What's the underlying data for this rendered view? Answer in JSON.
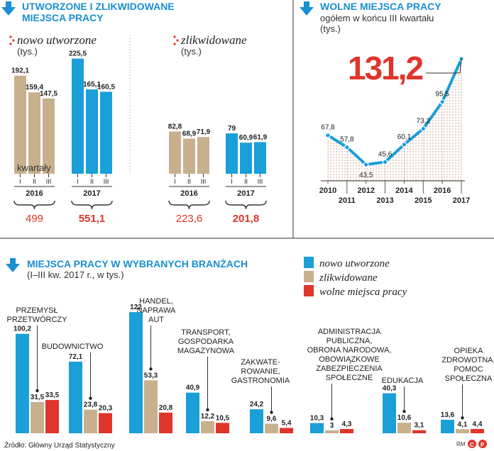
{
  "colors": {
    "blue": "#1a9fd8",
    "tan": "#c8b08c",
    "red": "#e0352b",
    "header": "#1a8fd2",
    "area_dots": "#d9a89a"
  },
  "panel1": {
    "title_line1": "UTWORZONE I ZLIKWIDOWANE",
    "title_line2": "MIEJSCA PRACY",
    "icon": "arrow-down-icon",
    "left": {
      "label": "nowo utworzone",
      "unit": "(tys.)",
      "quarters_label": "kwartały",
      "quarters": [
        "I",
        "II",
        "III"
      ],
      "groups": [
        {
          "year": "2016",
          "values": [
            192.1,
            159.4,
            147.5
          ],
          "labels": [
            "192,1",
            "159,4",
            "147,5"
          ],
          "total": "499",
          "color": "tan"
        },
        {
          "year": "2017",
          "values": [
            225.5,
            165.1,
            160.5
          ],
          "labels": [
            "225,5",
            "165,1",
            "160,5"
          ],
          "total": "551,1",
          "color": "blue"
        }
      ]
    },
    "right": {
      "label": "zlikwidowane",
      "unit": "(tys.)",
      "quarters": [
        "I",
        "II",
        "III"
      ],
      "groups": [
        {
          "year": "2016",
          "values": [
            82.8,
            68.9,
            71.9
          ],
          "labels": [
            "82,8",
            "68,9",
            "71,9"
          ],
          "total": "223,6",
          "color": "tan"
        },
        {
          "year": "2017",
          "values": [
            79,
            60.9,
            61.9
          ],
          "labels": [
            "79",
            "60,9",
            "61,9"
          ],
          "total": "201,8",
          "color": "blue"
        }
      ]
    }
  },
  "panel2": {
    "title": "WOLNE MIEJSCA PRACY",
    "subtitle_line1": "ogółem w końcu III kwartału",
    "subtitle_line2": "(tys.)",
    "highlight": "131,2",
    "icon": "arrow-down-icon"
  },
  "panel3": {
    "title": "MIEJSCA PRACY W WYBRANYCH BRANŻACH",
    "subtitle": "(I–III kw. 2017 r., w tys.)",
    "icon": "arrow-down-icon",
    "legend": [
      "nowo utworzone",
      "zlikwidowane",
      "wolne miejsca pracy"
    ]
  },
  "source": "Źródło: Główny Urząd Statystyczny",
  "credit": "RM",
  "chart_data": [
    {
      "type": "bar",
      "title": "UTWORZONE I ZLIKWIDOWANE MIEJSCA PRACY",
      "categories": [
        "2016 I",
        "2016 II",
        "2016 III",
        "2017 I",
        "2017 II",
        "2017 III"
      ],
      "series": [
        {
          "name": "nowo utworzone",
          "values": [
            192.1,
            159.4,
            147.5,
            225.5,
            165.1,
            160.5
          ]
        },
        {
          "name": "zlikwidowane",
          "values": [
            82.8,
            68.9,
            71.9,
            79,
            60.9,
            61.9
          ]
        }
      ],
      "ylabel": "(tys.)"
    },
    {
      "type": "area",
      "title": "WOLNE MIEJSCA PRACY",
      "x": [
        "2010",
        "2011",
        "2012",
        "2013",
        "2014",
        "2015",
        "2016",
        "2017"
      ],
      "values": [
        67.8,
        57.8,
        43.5,
        45.6,
        60.1,
        73.2,
        95.5,
        131.2
      ],
      "labels": [
        "67,8",
        "57,8",
        "43,5",
        "45,6",
        "60,1",
        "73,2",
        "95,5",
        "131,2"
      ],
      "ylabel": "(tys.)"
    },
    {
      "type": "bar",
      "title": "MIEJSCA PRACY W WYBRANYCH BRANŻACH",
      "categories": [
        [
          "PRZEMYSŁ",
          "PRZETWÓRCZY"
        ],
        [
          "BUDOWNICTWO"
        ],
        [
          "HANDEL,",
          "NAPRAWA",
          "AUT"
        ],
        [
          "TRANSPORT,",
          "GOSPODARKA",
          "MAGAZYNOWA"
        ],
        [
          "ZAKWATE-",
          "ROWANIE,",
          "GASTRONOMIA"
        ],
        [
          "ADMINISTRACJA",
          "PUBLICZNA,",
          "OBRONA NARODOWA,",
          "OBOWIĄZKOWE",
          "ZABEZPIECZENIA",
          "SPOŁECZNE"
        ],
        [
          "EDUKACJA"
        ],
        [
          "OPIEKA",
          "ZDROWOTNA,",
          "POMOC",
          "SPOŁECZNA"
        ]
      ],
      "series": [
        {
          "name": "nowo utworzone",
          "values": [
            100.2,
            72.1,
            122,
            40.9,
            24.2,
            10.3,
            40.3,
            13.6
          ],
          "labels": [
            "100,2",
            "72,1",
            "122",
            "40,9",
            "24,2",
            "10,3",
            "40,3",
            "13,6"
          ]
        },
        {
          "name": "zlikwidowane",
          "values": [
            31.5,
            23.8,
            53.3,
            12.2,
            9.6,
            3,
            10.6,
            4.1
          ],
          "labels": [
            "31,5",
            "23,8",
            "53,3",
            "12,2",
            "9,6",
            "3",
            "10,6",
            "4,1"
          ]
        },
        {
          "name": "wolne miejsca pracy",
          "values": [
            33.5,
            20.3,
            20.8,
            10.5,
            5.4,
            4.3,
            3.1,
            4.4
          ],
          "labels": [
            "33,5",
            "20,3",
            "20,8",
            "10,5",
            "5,4",
            "4,3",
            "3,1",
            "4,4"
          ]
        }
      ],
      "ylabel": "(I–III kw. 2017 r., w tys.)"
    }
  ]
}
